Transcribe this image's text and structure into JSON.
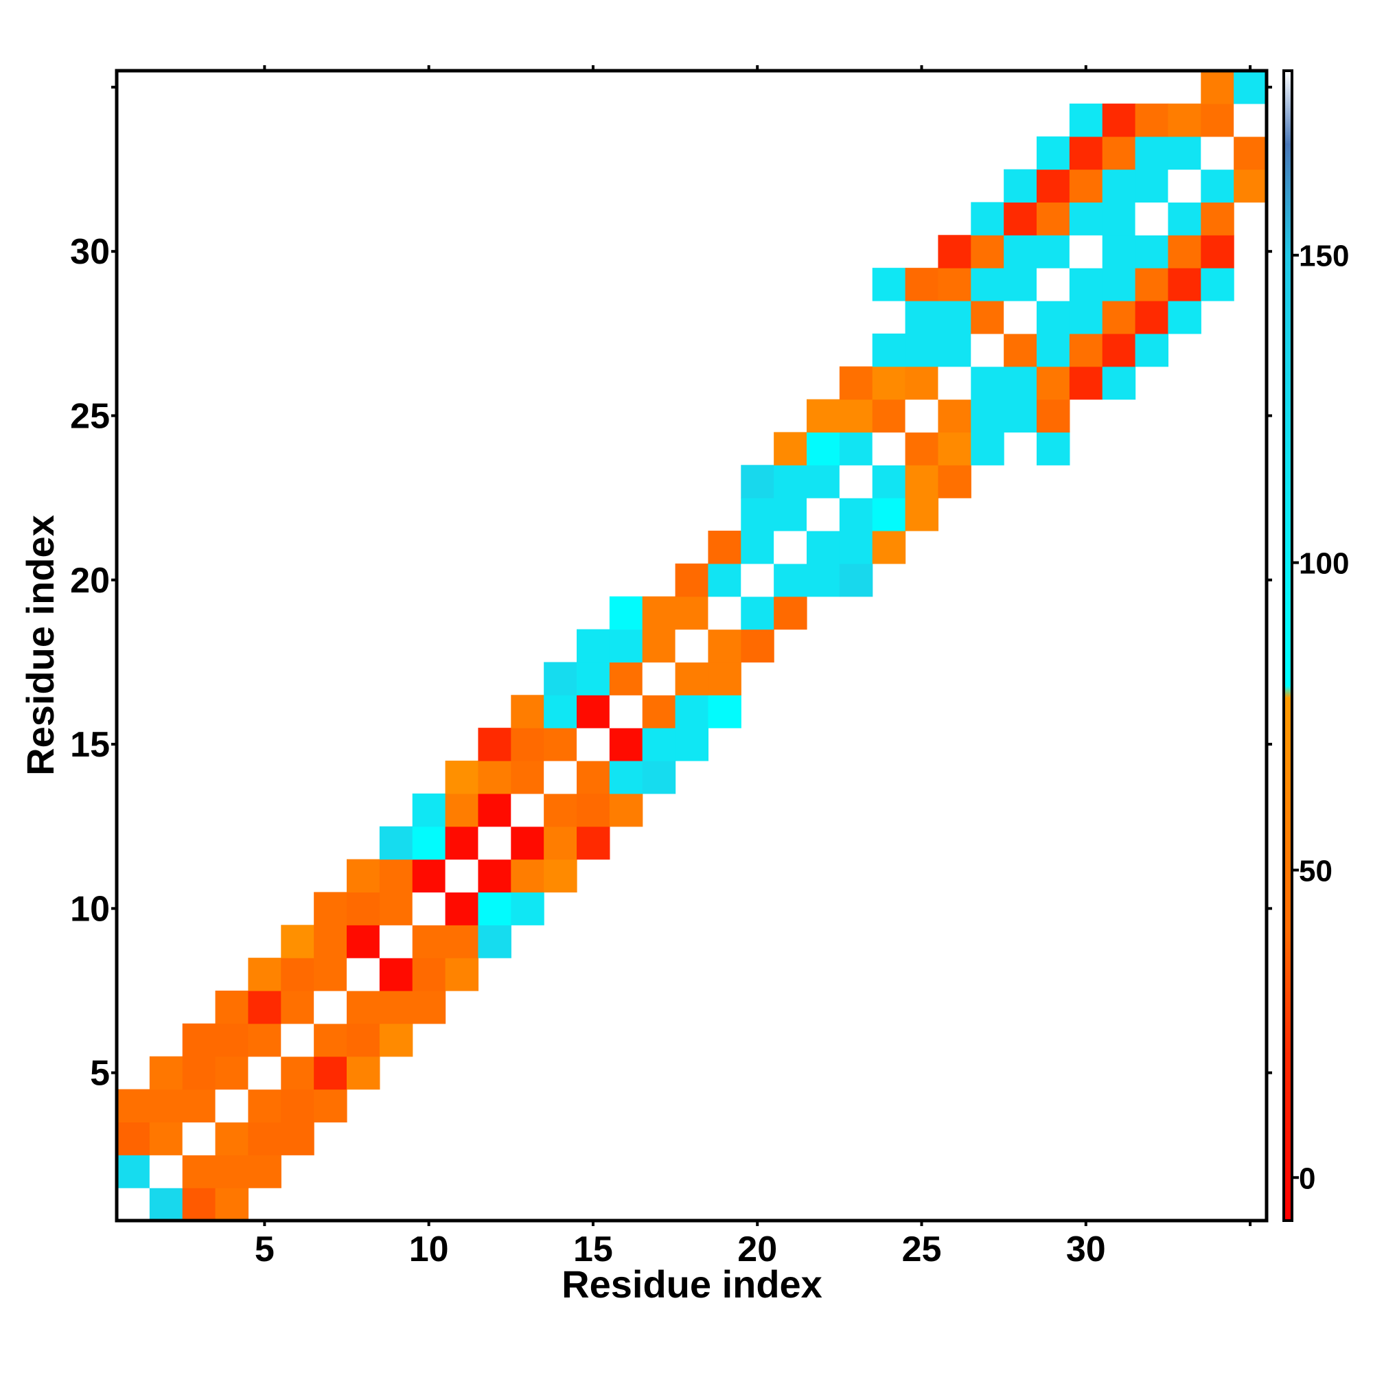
{
  "chart_data": {
    "type": "heatmap",
    "title": "",
    "xlabel": "Residue index",
    "ylabel": "Residue index",
    "xlim": [
      0.5,
      35.5
    ],
    "ylim": [
      0.5,
      35.5
    ],
    "x_ticks": [
      5,
      10,
      15,
      20,
      25,
      30
    ],
    "y_ticks": [
      5,
      10,
      15,
      20,
      25,
      30
    ],
    "colorbar": {
      "ticks": [
        0,
        50,
        100,
        150
      ],
      "range": [
        -7,
        180
      ],
      "color_stops": [
        {
          "value": -7,
          "color": "#ff0000"
        },
        {
          "value": 20,
          "color": "#ff2a00"
        },
        {
          "value": 40,
          "color": "#ff6a00"
        },
        {
          "value": 78,
          "color": "#ff9a00"
        },
        {
          "value": 80,
          "color": "#00ffff"
        },
        {
          "value": 150,
          "color": "#22c8e6"
        },
        {
          "value": 168,
          "color": "#4a78b8"
        },
        {
          "value": 180,
          "color": "#ffffff"
        }
      ]
    },
    "cells": [
      [
        1,
        1,
        180
      ],
      [
        2,
        1,
        130
      ],
      [
        3,
        1,
        35
      ],
      [
        4,
        1,
        50
      ],
      [
        1,
        2,
        125
      ],
      [
        2,
        2,
        180
      ],
      [
        3,
        2,
        45
      ],
      [
        4,
        2,
        45
      ],
      [
        5,
        2,
        45
      ],
      [
        1,
        3,
        38
      ],
      [
        2,
        3,
        50
      ],
      [
        3,
        3,
        180
      ],
      [
        4,
        3,
        50
      ],
      [
        5,
        3,
        40
      ],
      [
        6,
        3,
        40
      ],
      [
        1,
        4,
        45
      ],
      [
        2,
        4,
        45
      ],
      [
        3,
        4,
        45
      ],
      [
        4,
        4,
        180
      ],
      [
        5,
        4,
        45
      ],
      [
        6,
        4,
        40
      ],
      [
        7,
        4,
        45
      ],
      [
        2,
        5,
        50
      ],
      [
        3,
        5,
        40
      ],
      [
        4,
        5,
        45
      ],
      [
        5,
        5,
        180
      ],
      [
        6,
        5,
        45
      ],
      [
        7,
        5,
        20
      ],
      [
        8,
        5,
        60
      ],
      [
        3,
        6,
        40
      ],
      [
        4,
        6,
        40
      ],
      [
        5,
        6,
        45
      ],
      [
        6,
        6,
        180
      ],
      [
        7,
        6,
        45
      ],
      [
        8,
        6,
        40
      ],
      [
        9,
        6,
        65
      ],
      [
        4,
        7,
        45
      ],
      [
        5,
        7,
        20
      ],
      [
        6,
        7,
        45
      ],
      [
        7,
        7,
        180
      ],
      [
        8,
        7,
        45
      ],
      [
        9,
        7,
        45
      ],
      [
        10,
        7,
        45
      ],
      [
        5,
        8,
        60
      ],
      [
        6,
        8,
        40
      ],
      [
        7,
        8,
        45
      ],
      [
        8,
        8,
        180
      ],
      [
        9,
        8,
        0
      ],
      [
        10,
        8,
        40
      ],
      [
        11,
        8,
        60
      ],
      [
        6,
        9,
        70
      ],
      [
        7,
        9,
        45
      ],
      [
        8,
        9,
        0
      ],
      [
        9,
        9,
        180
      ],
      [
        10,
        9,
        45
      ],
      [
        11,
        9,
        45
      ],
      [
        12,
        9,
        125
      ],
      [
        7,
        10,
        45
      ],
      [
        8,
        10,
        40
      ],
      [
        9,
        10,
        45
      ],
      [
        10,
        10,
        180
      ],
      [
        11,
        10,
        0
      ],
      [
        12,
        10,
        85
      ],
      [
        13,
        10,
        110
      ],
      [
        8,
        11,
        55
      ],
      [
        9,
        11,
        45
      ],
      [
        10,
        11,
        0
      ],
      [
        11,
        11,
        180
      ],
      [
        12,
        11,
        0
      ],
      [
        13,
        11,
        55
      ],
      [
        14,
        11,
        65
      ],
      [
        9,
        12,
        125
      ],
      [
        10,
        12,
        85
      ],
      [
        11,
        12,
        0
      ],
      [
        12,
        12,
        180
      ],
      [
        13,
        12,
        0
      ],
      [
        14,
        12,
        55
      ],
      [
        15,
        12,
        20
      ],
      [
        10,
        13,
        110
      ],
      [
        11,
        13,
        55
      ],
      [
        12,
        13,
        0
      ],
      [
        13,
        13,
        180
      ],
      [
        14,
        13,
        45
      ],
      [
        15,
        13,
        40
      ],
      [
        16,
        13,
        55
      ],
      [
        11,
        14,
        70
      ],
      [
        12,
        14,
        55
      ],
      [
        13,
        14,
        45
      ],
      [
        14,
        14,
        180
      ],
      [
        15,
        14,
        45
      ],
      [
        16,
        14,
        115
      ],
      [
        17,
        14,
        125
      ],
      [
        12,
        15,
        20
      ],
      [
        13,
        15,
        40
      ],
      [
        14,
        15,
        45
      ],
      [
        15,
        15,
        180
      ],
      [
        16,
        15,
        0
      ],
      [
        17,
        15,
        110
      ],
      [
        18,
        15,
        110
      ],
      [
        13,
        16,
        55
      ],
      [
        14,
        16,
        110
      ],
      [
        15,
        16,
        0
      ],
      [
        16,
        16,
        180
      ],
      [
        17,
        16,
        45
      ],
      [
        18,
        16,
        110
      ],
      [
        19,
        16,
        85
      ],
      [
        14,
        17,
        125
      ],
      [
        15,
        17,
        110
      ],
      [
        16,
        17,
        45
      ],
      [
        17,
        17,
        180
      ],
      [
        18,
        17,
        55
      ],
      [
        19,
        17,
        55
      ],
      [
        15,
        18,
        110
      ],
      [
        16,
        18,
        110
      ],
      [
        17,
        18,
        55
      ],
      [
        18,
        18,
        180
      ],
      [
        19,
        18,
        55
      ],
      [
        20,
        18,
        40
      ],
      [
        16,
        19,
        85
      ],
      [
        17,
        19,
        55
      ],
      [
        18,
        19,
        55
      ],
      [
        19,
        19,
        180
      ],
      [
        20,
        19,
        115
      ],
      [
        21,
        19,
        40
      ],
      [
        18,
        20,
        40
      ],
      [
        19,
        20,
        115
      ],
      [
        20,
        20,
        180
      ],
      [
        21,
        20,
        115
      ],
      [
        22,
        20,
        115
      ],
      [
        23,
        20,
        130
      ],
      [
        19,
        21,
        40
      ],
      [
        20,
        21,
        115
      ],
      [
        21,
        21,
        180
      ],
      [
        22,
        21,
        115
      ],
      [
        23,
        21,
        115
      ],
      [
        24,
        21,
        65
      ],
      [
        20,
        22,
        115
      ],
      [
        21,
        22,
        115
      ],
      [
        22,
        22,
        180
      ],
      [
        23,
        22,
        115
      ],
      [
        24,
        22,
        85
      ],
      [
        25,
        22,
        65
      ],
      [
        20,
        23,
        130
      ],
      [
        21,
        23,
        115
      ],
      [
        22,
        23,
        115
      ],
      [
        23,
        23,
        180
      ],
      [
        24,
        23,
        115
      ],
      [
        25,
        23,
        65
      ],
      [
        26,
        23,
        45
      ],
      [
        21,
        24,
        65
      ],
      [
        22,
        24,
        85
      ],
      [
        23,
        24,
        115
      ],
      [
        24,
        24,
        180
      ],
      [
        25,
        24,
        45
      ],
      [
        26,
        24,
        65
      ],
      [
        27,
        24,
        115
      ],
      [
        29,
        24,
        115
      ],
      [
        22,
        25,
        65
      ],
      [
        23,
        25,
        65
      ],
      [
        24,
        25,
        45
      ],
      [
        25,
        25,
        180
      ],
      [
        26,
        25,
        55
      ],
      [
        27,
        25,
        115
      ],
      [
        28,
        25,
        115
      ],
      [
        29,
        25,
        40
      ],
      [
        23,
        26,
        45
      ],
      [
        24,
        26,
        65
      ],
      [
        25,
        26,
        60
      ],
      [
        26,
        26,
        180
      ],
      [
        27,
        26,
        115
      ],
      [
        28,
        26,
        115
      ],
      [
        29,
        26,
        50
      ],
      [
        30,
        26,
        20
      ],
      [
        31,
        26,
        115
      ],
      [
        24,
        27,
        115
      ],
      [
        25,
        27,
        115
      ],
      [
        26,
        27,
        115
      ],
      [
        27,
        27,
        180
      ],
      [
        28,
        27,
        45
      ],
      [
        29,
        27,
        115
      ],
      [
        30,
        27,
        45
      ],
      [
        31,
        27,
        20
      ],
      [
        32,
        27,
        115
      ],
      [
        25,
        28,
        115
      ],
      [
        26,
        28,
        115
      ],
      [
        27,
        28,
        45
      ],
      [
        28,
        28,
        180
      ],
      [
        29,
        28,
        115
      ],
      [
        30,
        28,
        115
      ],
      [
        31,
        28,
        45
      ],
      [
        32,
        28,
        20
      ],
      [
        33,
        28,
        110
      ],
      [
        24,
        29,
        110
      ],
      [
        25,
        29,
        40
      ],
      [
        26,
        29,
        45
      ],
      [
        27,
        29,
        115
      ],
      [
        28,
        29,
        115
      ],
      [
        29,
        29,
        180
      ],
      [
        30,
        29,
        115
      ],
      [
        31,
        29,
        115
      ],
      [
        32,
        29,
        45
      ],
      [
        33,
        29,
        20
      ],
      [
        34,
        29,
        110
      ],
      [
        26,
        30,
        20
      ],
      [
        27,
        30,
        45
      ],
      [
        28,
        30,
        115
      ],
      [
        29,
        30,
        115
      ],
      [
        30,
        30,
        180
      ],
      [
        31,
        30,
        115
      ],
      [
        32,
        30,
        115
      ],
      [
        33,
        30,
        45
      ],
      [
        34,
        30,
        20
      ],
      [
        27,
        31,
        115
      ],
      [
        28,
        31,
        20
      ],
      [
        29,
        31,
        45
      ],
      [
        30,
        31,
        115
      ],
      [
        31,
        31,
        115
      ],
      [
        32,
        31,
        180
      ],
      [
        33,
        31,
        115
      ],
      [
        34,
        31,
        45
      ],
      [
        28,
        32,
        115
      ],
      [
        29,
        32,
        20
      ],
      [
        30,
        32,
        45
      ],
      [
        31,
        32,
        115
      ],
      [
        32,
        32,
        115
      ],
      [
        33,
        32,
        180
      ],
      [
        34,
        32,
        115
      ],
      [
        35,
        32,
        60
      ],
      [
        29,
        33,
        110
      ],
      [
        30,
        33,
        20
      ],
      [
        31,
        33,
        45
      ],
      [
        32,
        33,
        115
      ],
      [
        33,
        33,
        115
      ],
      [
        34,
        33,
        180
      ],
      [
        35,
        33,
        45
      ],
      [
        36,
        33,
        55
      ],
      [
        30,
        34,
        110
      ],
      [
        31,
        34,
        20
      ],
      [
        32,
        34,
        45
      ],
      [
        33,
        34,
        55
      ],
      [
        34,
        34,
        45
      ],
      [
        35,
        34,
        180
      ],
      [
        36,
        34,
        115
      ],
      [
        34,
        35,
        55
      ],
      [
        35,
        35,
        115
      ],
      [
        36,
        35,
        180
      ]
    ]
  }
}
